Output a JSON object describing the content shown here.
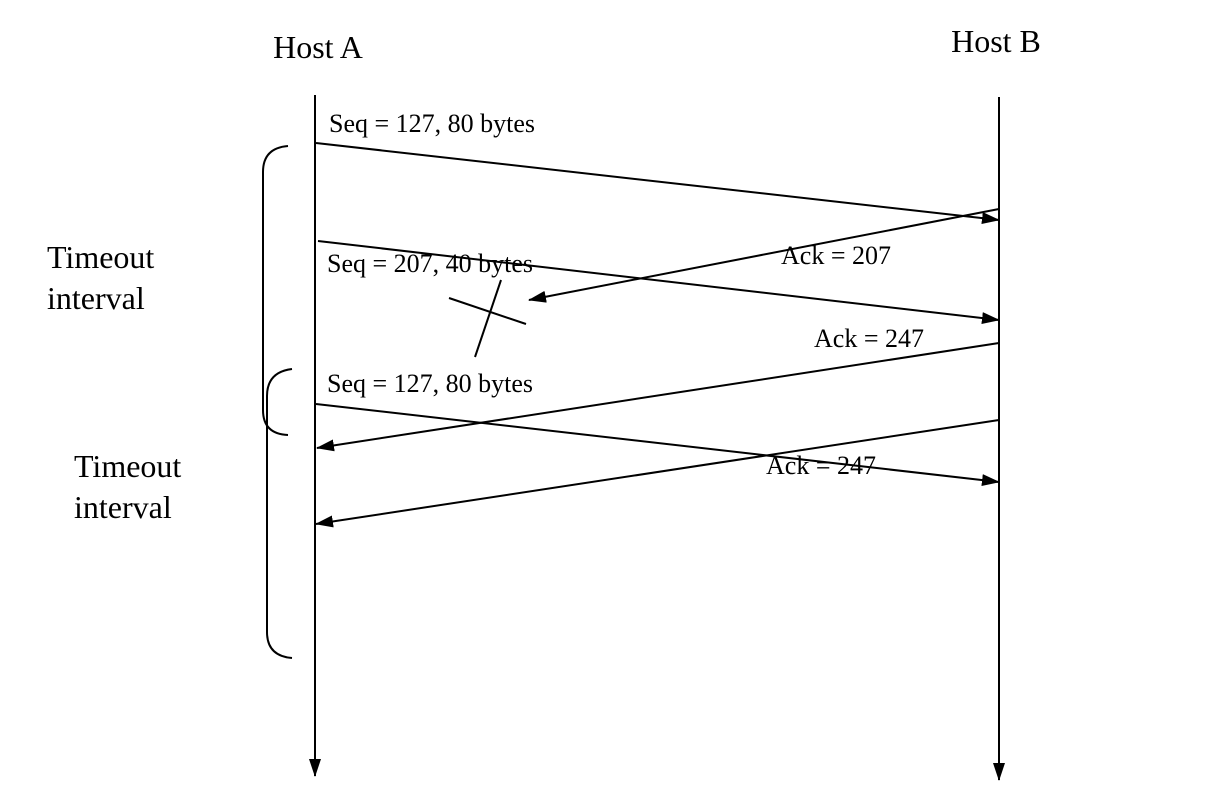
{
  "hosts": {
    "a": "Host A",
    "b": "Host B"
  },
  "messages": {
    "seq1": "Seq = 127, 80 bytes",
    "seq2": "Seq = 207, 40 bytes",
    "seq3": "Seq = 127, 80 bytes",
    "ack1": "Ack = 207",
    "ack2": "Ack = 247",
    "ack3": "Ack = 247"
  },
  "timeouts": {
    "first": {
      "line1": "Timeout",
      "line2": "interval"
    },
    "second": {
      "line1": "Timeout",
      "line2": "interval"
    }
  },
  "colors": {
    "ink": "#000000",
    "background": "#ffffff"
  }
}
